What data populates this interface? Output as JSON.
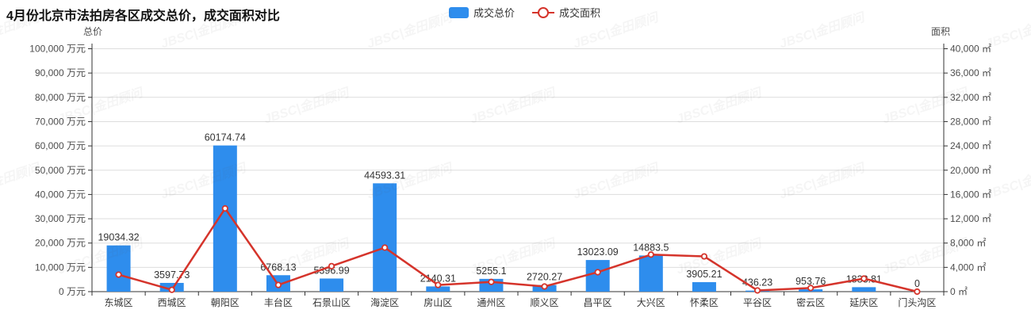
{
  "title": "4月份北京市法拍房各区成交总价，成交面积对比",
  "watermark": "JBSC|金田顾问",
  "legend": {
    "bar_label": "成交总价",
    "line_label": "成交面积"
  },
  "colors": {
    "bar": "#2e8ded",
    "line": "#d5342b",
    "axis": "#333333",
    "tick_text": "#4d4d4d",
    "grid": "#dddddd",
    "label_text": "#333333"
  },
  "chart_data": {
    "type": "bar",
    "categories": [
      "东城区",
      "西城区",
      "朝阳区",
      "丰台区",
      "石景山区",
      "海淀区",
      "房山区",
      "通州区",
      "顺义区",
      "昌平区",
      "大兴区",
      "怀柔区",
      "平谷区",
      "密云区",
      "延庆区",
      "门头沟区"
    ],
    "series": [
      {
        "name": "成交总价",
        "type": "bar",
        "axis": "left",
        "unit": "万元",
        "values": [
          19034.32,
          3597.73,
          60174.74,
          6768.13,
          5396.99,
          44593.31,
          2140.31,
          5255.1,
          2720.27,
          13023.09,
          14883.5,
          3905.21,
          436.23,
          953.76,
          1833.81,
          0
        ],
        "data_labels_shown": true
      },
      {
        "name": "成交面积",
        "type": "line",
        "axis": "right",
        "unit": "㎡",
        "values": [
          2800,
          300,
          13700,
          1100,
          4200,
          7250,
          1100,
          1600,
          850,
          3200,
          6100,
          5800,
          200,
          600,
          2150,
          0
        ],
        "data_labels_shown": false,
        "note": "values estimated from marker positions; no labels shown on chart"
      }
    ],
    "left_axis": {
      "name": "总价",
      "unit": "万元",
      "min": 0,
      "max": 100000,
      "step": 10000
    },
    "right_axis": {
      "name": "面积",
      "unit": "㎡",
      "min": 0,
      "max": 40000,
      "step": 4000
    },
    "grid": true,
    "legend_position": "top-center",
    "title": "4月份北京市法拍房各区成交总价，成交面积对比"
  }
}
